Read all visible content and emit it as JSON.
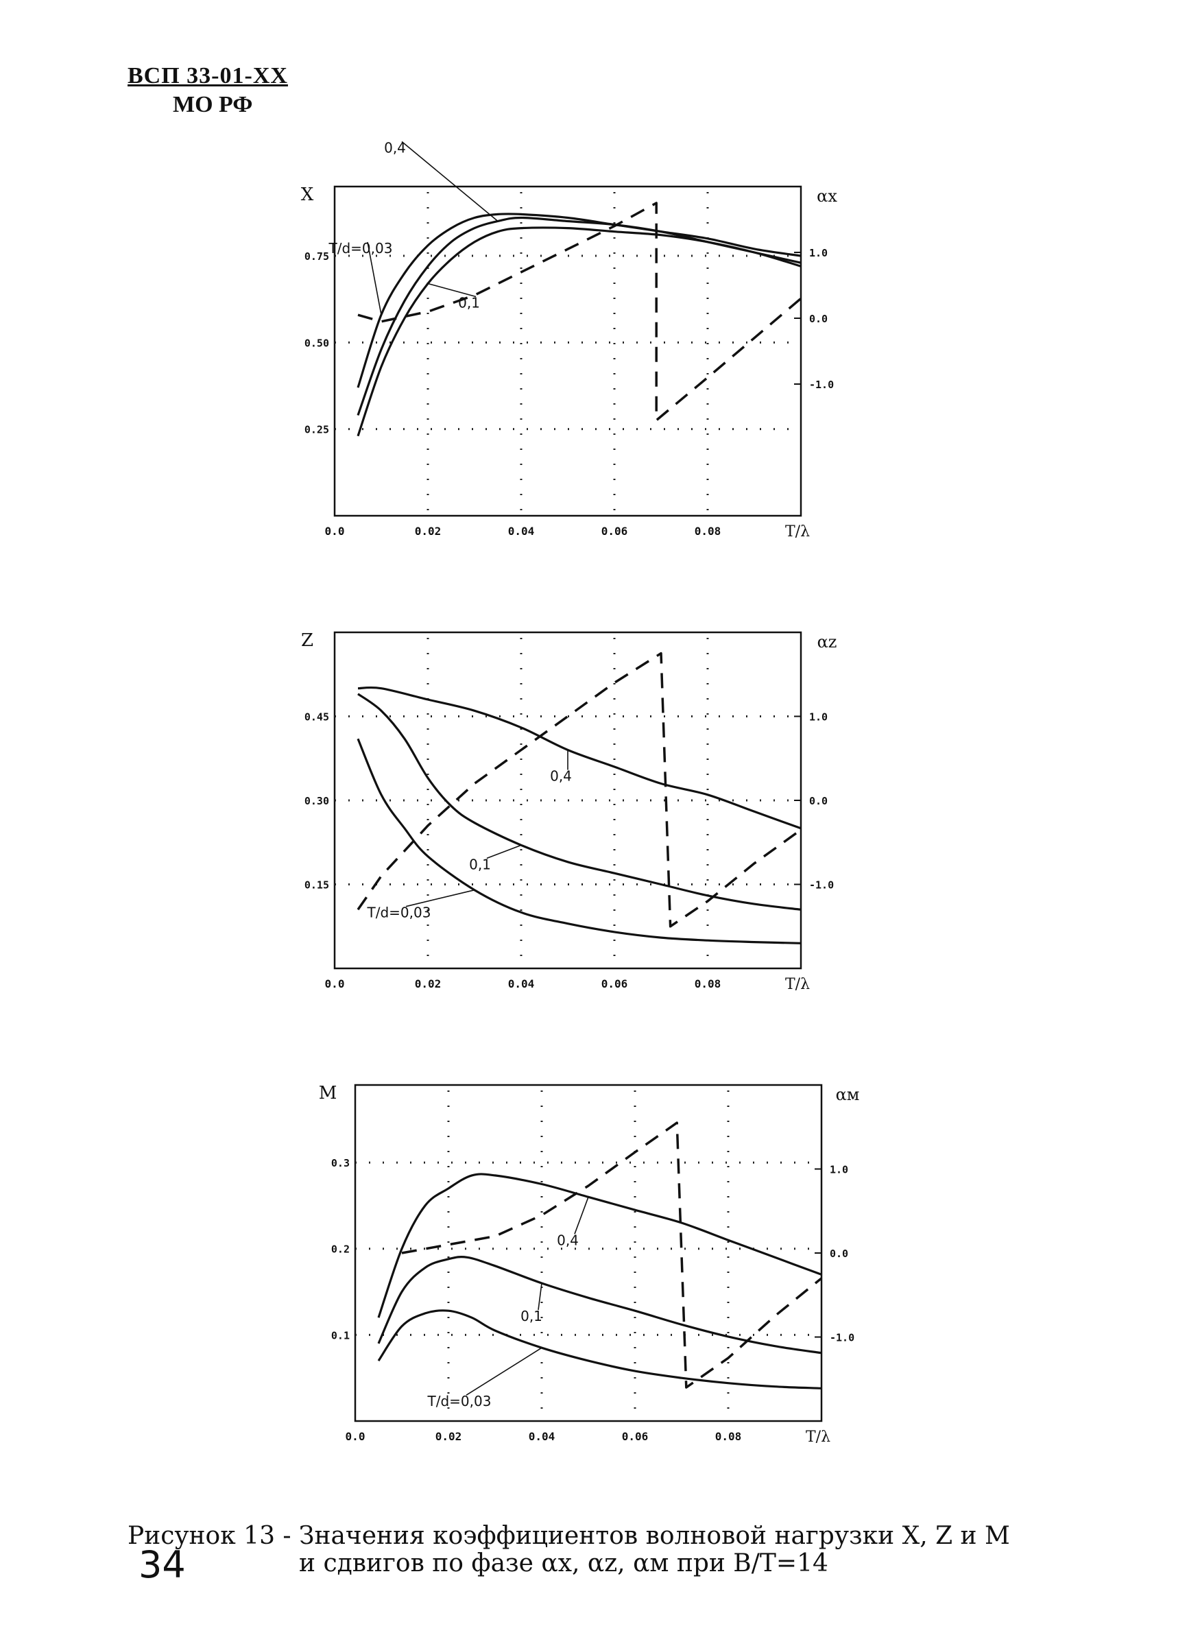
{
  "header": {
    "code": "ВСП 33-01-ХХ",
    "org": "МО РФ"
  },
  "caption": {
    "line1": "Рисунок 13 - Значения коэффициентов волновой нагрузки X, Z и M",
    "line2": "и сдвигов по фазе αx, αz, αм при B/T=14"
  },
  "page_number": "34",
  "chart_data": [
    {
      "type": "line",
      "ylabel": "X",
      "y2label": "αx",
      "xlabel": "T/λ",
      "xlim": [
        0,
        0.1
      ],
      "ylim": [
        0,
        0.95
      ],
      "y2lim": [
        -3.0,
        2.0
      ],
      "xticks": [
        "0.0",
        "0.02",
        "0.04",
        "0.06",
        "0.08"
      ],
      "yticks": [
        "0.25",
        "0.50",
        "0.75"
      ],
      "y2ticks": [
        "-1.0",
        "0.0",
        "1.0"
      ],
      "grid": "dotted",
      "series": [
        {
          "name": "T/d=0,03",
          "axis": "left",
          "style": "solid",
          "x": [
            0.005,
            0.01,
            0.015,
            0.02,
            0.025,
            0.03,
            0.035,
            0.04,
            0.05,
            0.06,
            0.07,
            0.08,
            0.09,
            0.1
          ],
          "y": [
            0.37,
            0.58,
            0.7,
            0.78,
            0.83,
            0.86,
            0.87,
            0.87,
            0.86,
            0.84,
            0.82,
            0.8,
            0.77,
            0.75
          ]
        },
        {
          "name": "0,4",
          "axis": "left",
          "style": "solid",
          "x": [
            0.005,
            0.01,
            0.015,
            0.02,
            0.025,
            0.03,
            0.035,
            0.04,
            0.05,
            0.06,
            0.07,
            0.08,
            0.09,
            0.1
          ],
          "y": [
            0.29,
            0.48,
            0.62,
            0.72,
            0.79,
            0.83,
            0.85,
            0.86,
            0.85,
            0.84,
            0.82,
            0.79,
            0.76,
            0.73
          ]
        },
        {
          "name": "0,1",
          "axis": "left",
          "style": "solid",
          "x": [
            0.005,
            0.01,
            0.015,
            0.02,
            0.025,
            0.03,
            0.035,
            0.04,
            0.05,
            0.06,
            0.07,
            0.08,
            0.09,
            0.1
          ],
          "y": [
            0.23,
            0.43,
            0.57,
            0.67,
            0.74,
            0.79,
            0.82,
            0.83,
            0.83,
            0.82,
            0.81,
            0.79,
            0.76,
            0.72
          ]
        },
        {
          "name": "",
          "axis": "right",
          "style": "dashed",
          "x": [
            0.005,
            0.01,
            0.02,
            0.03,
            0.04,
            0.05,
            0.06,
            0.069,
            0.069,
            0.08,
            0.09,
            0.1
          ],
          "y": [
            0.05,
            -0.05,
            0.1,
            0.35,
            0.7,
            1.05,
            1.4,
            1.75,
            -1.55,
            -0.9,
            -0.3,
            0.3
          ]
        }
      ],
      "annotations": [
        "T/d=0,03",
        "0,4",
        "0,1"
      ]
    },
    {
      "type": "line",
      "ylabel": "Z",
      "y2label": "αz",
      "xlabel": "T/λ",
      "xlim": [
        0,
        0.1
      ],
      "ylim": [
        0,
        0.6
      ],
      "y2lim": [
        -2.0,
        2.0
      ],
      "xticks": [
        "0.0",
        "0.02",
        "0.04",
        "0.06",
        "0.08"
      ],
      "yticks": [
        "0.15",
        "0.30",
        "0.45"
      ],
      "y2ticks": [
        "-1.0",
        "0.0",
        "1.0"
      ],
      "grid": "dotted",
      "series": [
        {
          "name": "0,4",
          "axis": "left",
          "style": "solid",
          "x": [
            0.005,
            0.01,
            0.02,
            0.03,
            0.04,
            0.05,
            0.06,
            0.07,
            0.08,
            0.09,
            0.1
          ],
          "y": [
            0.5,
            0.5,
            0.48,
            0.46,
            0.43,
            0.39,
            0.36,
            0.33,
            0.31,
            0.28,
            0.25
          ]
        },
        {
          "name": "0,1",
          "axis": "left",
          "style": "solid",
          "x": [
            0.005,
            0.01,
            0.015,
            0.02,
            0.025,
            0.03,
            0.04,
            0.05,
            0.06,
            0.07,
            0.08,
            0.09,
            0.1
          ],
          "y": [
            0.49,
            0.46,
            0.41,
            0.34,
            0.29,
            0.26,
            0.22,
            0.19,
            0.17,
            0.15,
            0.13,
            0.115,
            0.105
          ]
        },
        {
          "name": "T/d=0,03",
          "axis": "left",
          "style": "solid",
          "x": [
            0.005,
            0.01,
            0.015,
            0.02,
            0.03,
            0.04,
            0.05,
            0.06,
            0.07,
            0.08,
            0.09,
            0.1
          ],
          "y": [
            0.41,
            0.31,
            0.25,
            0.2,
            0.14,
            0.1,
            0.08,
            0.065,
            0.055,
            0.05,
            0.047,
            0.045
          ]
        },
        {
          "name": "",
          "axis": "right",
          "style": "dashed",
          "x": [
            0.005,
            0.01,
            0.02,
            0.03,
            0.04,
            0.05,
            0.06,
            0.07,
            0.072,
            0.08,
            0.09,
            0.1
          ],
          "y": [
            -1.3,
            -0.9,
            -0.3,
            0.2,
            0.6,
            1.0,
            1.4,
            1.75,
            -1.5,
            -1.2,
            -0.75,
            -0.35
          ]
        }
      ],
      "annotations": [
        "0,4",
        "0,1",
        "T/d=0,03"
      ]
    },
    {
      "type": "line",
      "ylabel": "M",
      "y2label": "αм",
      "xlabel": "T/λ",
      "xlim": [
        0,
        0.1
      ],
      "ylim": [
        0,
        0.39
      ],
      "y2lim": [
        -2.0,
        2.0
      ],
      "xticks": [
        "0.0",
        "0.02",
        "0.04",
        "0.06",
        "0.08"
      ],
      "yticks": [
        "0.1",
        "0.2",
        "0.3"
      ],
      "y2ticks": [
        "-1.0",
        "0.0",
        "1.0"
      ],
      "grid": "dotted",
      "series": [
        {
          "name": "0,4",
          "axis": "left",
          "style": "solid",
          "x": [
            0.005,
            0.01,
            0.015,
            0.02,
            0.025,
            0.03,
            0.04,
            0.05,
            0.06,
            0.07,
            0.08,
            0.09,
            0.1
          ],
          "y": [
            0.12,
            0.2,
            0.25,
            0.27,
            0.285,
            0.285,
            0.275,
            0.26,
            0.245,
            0.23,
            0.21,
            0.19,
            0.17
          ]
        },
        {
          "name": "0,1",
          "axis": "left",
          "style": "solid",
          "x": [
            0.005,
            0.01,
            0.015,
            0.02,
            0.024,
            0.03,
            0.04,
            0.05,
            0.06,
            0.07,
            0.08,
            0.09,
            0.1
          ],
          "y": [
            0.09,
            0.15,
            0.178,
            0.188,
            0.19,
            0.18,
            0.16,
            0.143,
            0.128,
            0.112,
            0.098,
            0.087,
            0.079
          ]
        },
        {
          "name": "T/d=0,03",
          "axis": "left",
          "style": "solid",
          "x": [
            0.005,
            0.01,
            0.015,
            0.02,
            0.025,
            0.03,
            0.04,
            0.05,
            0.06,
            0.07,
            0.08,
            0.09,
            0.1
          ],
          "y": [
            0.07,
            0.11,
            0.125,
            0.128,
            0.12,
            0.105,
            0.085,
            0.07,
            0.058,
            0.05,
            0.044,
            0.04,
            0.038
          ]
        },
        {
          "name": "",
          "axis": "right",
          "style": "dashed",
          "x": [
            0.01,
            0.02,
            0.03,
            0.04,
            0.05,
            0.06,
            0.069,
            0.071,
            0.08,
            0.09,
            0.1
          ],
          "y": [
            0.0,
            0.1,
            0.2,
            0.45,
            0.8,
            1.2,
            1.55,
            -1.6,
            -1.25,
            -0.75,
            -0.3
          ]
        }
      ],
      "annotations": [
        "0,4",
        "0,1",
        "T/d=0,03"
      ]
    }
  ]
}
